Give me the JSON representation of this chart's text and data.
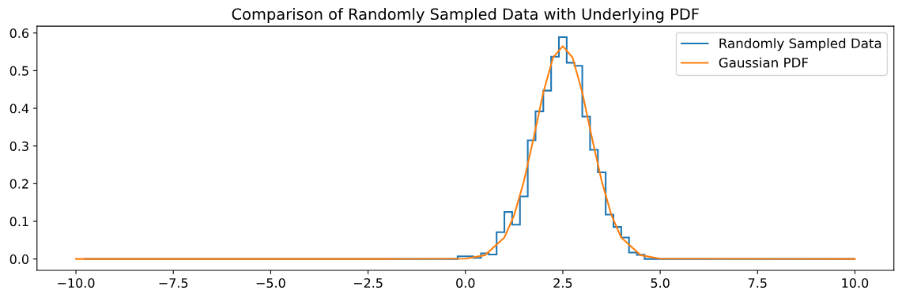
{
  "chart_data": {
    "type": "histogram",
    "title": "Comparison of Randomly Sampled Data with Underlying PDF",
    "series": [
      {
        "name": "Randomly Sampled Data",
        "color": "#1f77b4",
        "bins": [
          -9.8,
          -0.2,
          0.0,
          0.2,
          0.4,
          0.6,
          0.8,
          1.0,
          1.2,
          1.4,
          1.6,
          1.8,
          2.0,
          2.2,
          2.4,
          2.6,
          2.8,
          3.0,
          3.2,
          3.4,
          3.6,
          3.8,
          4.0,
          4.2,
          4.4,
          4.6,
          4.8,
          10.0
        ],
        "values": [
          0.0,
          0.007,
          0.007,
          0.003,
          0.015,
          0.012,
          0.071,
          0.125,
          0.091,
          0.166,
          0.315,
          0.392,
          0.447,
          0.537,
          0.589,
          0.521,
          0.513,
          0.378,
          0.29,
          0.23,
          0.118,
          0.085,
          0.057,
          0.017,
          0.011,
          0.0,
          0.0
        ]
      },
      {
        "name": "Gaussian PDF",
        "type": "line",
        "color": "#ff7f0e",
        "x": [
          -10,
          -2,
          0,
          0.5,
          1,
          1.25,
          1.5,
          1.75,
          2,
          2.25,
          2.5,
          2.75,
          3,
          3.25,
          3.5,
          3.75,
          4,
          4.5,
          5,
          10
        ],
        "values": [
          0.0,
          0.0,
          0.001,
          0.01,
          0.057,
          0.116,
          0.206,
          0.321,
          0.442,
          0.535,
          0.565,
          0.535,
          0.442,
          0.321,
          0.206,
          0.116,
          0.057,
          0.01,
          0.001,
          0.0
        ]
      }
    ],
    "xlim": [
      -11,
      11
    ],
    "xticks": [
      {
        "value": -10,
        "label": "−10.0"
      },
      {
        "value": -7.5,
        "label": "−7.5"
      },
      {
        "value": -5,
        "label": "−5.0"
      },
      {
        "value": -2.5,
        "label": "−2.5"
      },
      {
        "value": 0,
        "label": "0.0"
      },
      {
        "value": 2.5,
        "label": "2.5"
      },
      {
        "value": 5,
        "label": "5.0"
      },
      {
        "value": 7.5,
        "label": "7.5"
      },
      {
        "value": 10,
        "label": "10.0"
      }
    ],
    "ylim": [
      -0.03,
      0.618
    ],
    "yticks": [
      {
        "value": 0,
        "label": "0.0"
      },
      {
        "value": 0.1,
        "label": "0.1"
      },
      {
        "value": 0.2,
        "label": "0.2"
      },
      {
        "value": 0.3,
        "label": "0.3"
      },
      {
        "value": 0.4,
        "label": "0.4"
      },
      {
        "value": 0.5,
        "label": "0.5"
      },
      {
        "value": 0.6,
        "label": "0.6"
      }
    ],
    "grid": false,
    "legend": "top right"
  }
}
